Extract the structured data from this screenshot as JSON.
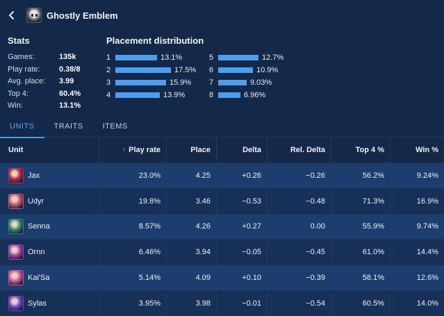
{
  "header": {
    "title": "Ghostly Emblem",
    "back_icon": "chevron-left-icon",
    "item_icon": "ghostly-emblem-icon"
  },
  "stats": {
    "title": "Stats",
    "rows": [
      {
        "label": "Games:",
        "value": "135k"
      },
      {
        "label": "Play rate:",
        "value": "0.38/8"
      },
      {
        "label": "Avg. place:",
        "value": "3.99"
      },
      {
        "label": "Top 4:",
        "value": "60.4%"
      },
      {
        "label": "Win:",
        "value": "13.1%"
      }
    ]
  },
  "placement": {
    "title": "Placement distribution",
    "rows": [
      {
        "place": "1",
        "pct": "13.1%",
        "value": 13.1
      },
      {
        "place": "2",
        "pct": "17.5%",
        "value": 17.5
      },
      {
        "place": "3",
        "pct": "15.9%",
        "value": 15.9
      },
      {
        "place": "4",
        "pct": "13.9%",
        "value": 13.9
      },
      {
        "place": "5",
        "pct": "12.7%",
        "value": 12.7
      },
      {
        "place": "6",
        "pct": "10.9%",
        "value": 10.9
      },
      {
        "place": "7",
        "pct": "9.03%",
        "value": 9.03
      },
      {
        "place": "8",
        "pct": "6.96%",
        "value": 6.96
      }
    ]
  },
  "tabs": [
    {
      "label": "UNITS",
      "active": true
    },
    {
      "label": "TRAITS",
      "active": false
    },
    {
      "label": "ITEMS",
      "active": false
    }
  ],
  "table": {
    "headers": {
      "unit": "Unit",
      "play_rate": "Play rate",
      "place": "Place",
      "delta": "Delta",
      "rel_delta": "Rel. Delta",
      "top4": "Top 4 %",
      "win": "Win %"
    },
    "sort_icon": "arrow-up-icon",
    "rows": [
      {
        "unit": "Jax",
        "color": "#b0304a",
        "play_rate": "23.0%",
        "place": "4.25",
        "delta": "+0.26",
        "rel_delta": "−0.26",
        "top4": "56.2%",
        "win": "9.24%"
      },
      {
        "unit": "Udyr",
        "color": "#b85a7a",
        "play_rate": "19.8%",
        "place": "3.46",
        "delta": "−0.53",
        "rel_delta": "−0.48",
        "top4": "71.3%",
        "win": "16.9%"
      },
      {
        "unit": "Senna",
        "color": "#2f8a72",
        "play_rate": "8.57%",
        "place": "4.26",
        "delta": "+0.27",
        "rel_delta": "0.00",
        "top4": "55.9%",
        "win": "9.74%"
      },
      {
        "unit": "Ornn",
        "color": "#9a4aa8",
        "play_rate": "6.46%",
        "place": "3.94",
        "delta": "−0.05",
        "rel_delta": "−0.45",
        "top4": "61.0%",
        "win": "14.4%"
      },
      {
        "unit": "Kai'Sa",
        "color": "#c85a9a",
        "play_rate": "5.14%",
        "place": "4.09",
        "delta": "+0.10",
        "rel_delta": "−0.39",
        "top4": "58.1%",
        "win": "12.6%"
      },
      {
        "unit": "Sylas",
        "color": "#6a4ac0",
        "play_rate": "3.95%",
        "place": "3.98",
        "delta": "−0.01",
        "rel_delta": "−0.54",
        "top4": "60.5%",
        "win": "14.0%"
      }
    ]
  }
}
